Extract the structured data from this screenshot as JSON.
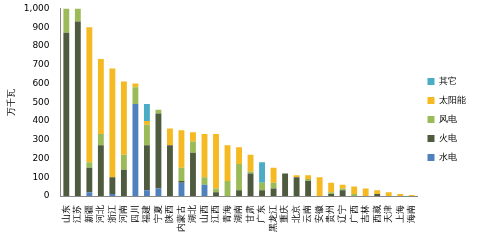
{
  "chart_data": {
    "type": "bar",
    "stacked": true,
    "grid": false,
    "legend": "right",
    "y_label": "万千瓦",
    "categories": [
      "山东",
      "江苏",
      "新疆",
      "河北",
      "浙江",
      "河南",
      "四川",
      "福建",
      "宁夏",
      "陕西",
      "内蒙古",
      "湖北",
      "山西",
      "江西",
      "青海",
      "湖南",
      "甘肃",
      "广东",
      "黑龙江",
      "重庆",
      "北京",
      "云南",
      "安徽",
      "贵州",
      "辽宁",
      "广西",
      "吉林",
      "西藏",
      "天津",
      "上海",
      "海南"
    ],
    "ylim": [
      0,
      1000
    ],
    "yticks": [
      0,
      100,
      200,
      300,
      400,
      500,
      600,
      700,
      800,
      900,
      1000
    ],
    "series": [
      {
        "name": "水电",
        "color": "#4f81bd",
        "values": [
          0,
          0,
          20,
          0,
          10,
          0,
          490,
          30,
          40,
          0,
          70,
          0,
          60,
          0,
          0,
          0,
          0,
          0,
          0,
          0,
          0,
          0,
          0,
          0,
          0,
          0,
          0,
          0,
          0,
          0,
          0
        ]
      },
      {
        "name": "火电",
        "color": "#4f5b3e",
        "values": [
          870,
          930,
          130,
          270,
          90,
          140,
          0,
          240,
          400,
          270,
          10,
          230,
          0,
          20,
          0,
          30,
          120,
          30,
          40,
          120,
          100,
          80,
          0,
          10,
          30,
          0,
          0,
          10,
          0,
          0,
          0
        ]
      },
      {
        "name": "风电",
        "color": "#9bbb59",
        "values": [
          130,
          70,
          30,
          60,
          0,
          80,
          90,
          110,
          20,
          0,
          70,
          60,
          40,
          20,
          80,
          140,
          10,
          40,
          30,
          0,
          0,
          10,
          0,
          10,
          10,
          10,
          0,
          0,
          0,
          0,
          0
        ]
      },
      {
        "name": "太阳能",
        "color": "#f5b921",
        "values": [
          0,
          0,
          720,
          400,
          580,
          390,
          20,
          20,
          0,
          90,
          200,
          50,
          230,
          290,
          190,
          90,
          90,
          0,
          80,
          0,
          10,
          20,
          100,
          50,
          20,
          40,
          40,
          20,
          20,
          10,
          5
        ]
      },
      {
        "name": "其它",
        "color": "#4bacc6",
        "values": [
          0,
          0,
          0,
          0,
          0,
          0,
          0,
          90,
          0,
          0,
          0,
          0,
          0,
          0,
          0,
          0,
          0,
          110,
          0,
          0,
          0,
          0,
          0,
          0,
          0,
          0,
          0,
          0,
          0,
          0,
          0
        ]
      }
    ]
  }
}
